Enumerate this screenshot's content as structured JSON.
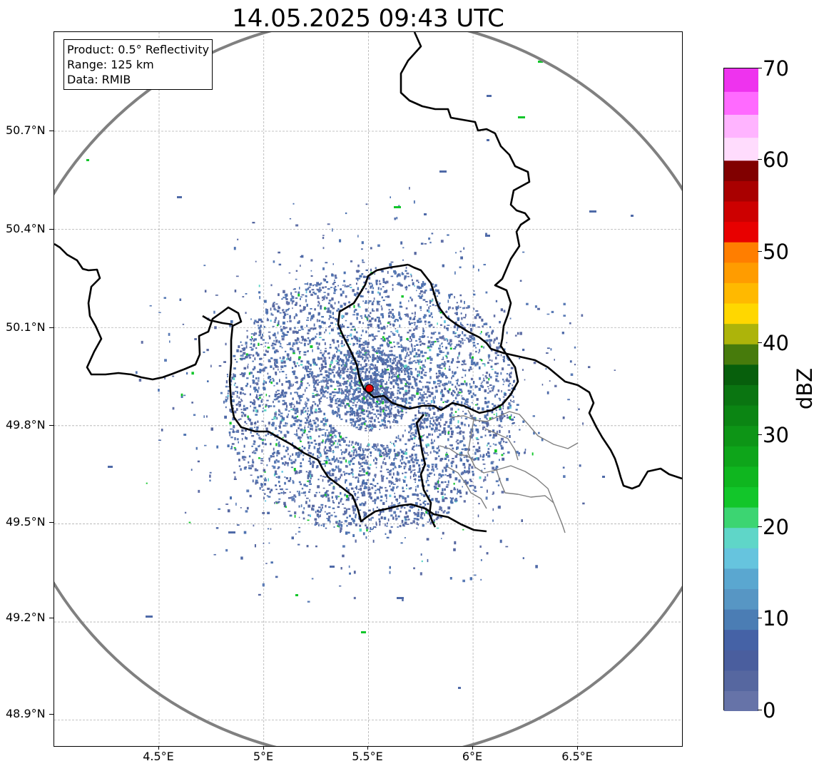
{
  "title": "14.05.2025 09:43 UTC",
  "info": {
    "product": "Product: 0.5° Reflectivity",
    "range": "Range: 125 km",
    "data": "Data: RMIB"
  },
  "axes": {
    "lat_ticks": [
      "50.7°N",
      "50.4°N",
      "50.1°N",
      "49.8°N",
      "49.5°N",
      "49.2°N",
      "48.9°N"
    ],
    "lat_values": [
      50.7,
      50.4,
      50.1,
      49.8,
      49.5,
      49.2,
      48.9
    ],
    "lon_ticks": [
      "4.5°E",
      "5°E",
      "5.5°E",
      "6°E",
      "6.5°E"
    ],
    "lon_values": [
      4.5,
      5.0,
      5.5,
      6.0,
      6.5
    ],
    "lon_range": [
      4.0,
      7.0
    ],
    "lat_range": [
      48.8,
      51.0
    ]
  },
  "radar": {
    "site_lat": 49.914,
    "site_lon": 5.505,
    "range_km": 125,
    "site_color": "#e00000",
    "range_ring_color": "#808080"
  },
  "colorbar": {
    "unit": "dBZ",
    "min": 0,
    "max": 70,
    "tick_labels": [
      "0",
      "10",
      "20",
      "30",
      "40",
      "50",
      "60",
      "70"
    ],
    "tick_values": [
      0,
      10,
      20,
      30,
      40,
      50,
      60,
      70
    ],
    "colors": [
      "#6673a8",
      "#5667a0",
      "#4a5e9e",
      "#4562a6",
      "#4b7db4",
      "#5796c4",
      "#5aa7d0",
      "#66c4de",
      "#5fd6c8",
      "#3cd572",
      "#12c62a",
      "#0fb61f",
      "#0ea51a",
      "#0d9516",
      "#0b8513",
      "#0a7511",
      "#075f0c",
      "#477b0c",
      "#adb40a",
      "#ffd700",
      "#ffb900",
      "#ff9c00",
      "#ff7e00",
      "#e80000",
      "#cd0000",
      "#a90000",
      "#810000",
      "#ffdcfd",
      "#ffb4ff",
      "#ff6aff",
      "#ee33ee"
    ]
  }
}
